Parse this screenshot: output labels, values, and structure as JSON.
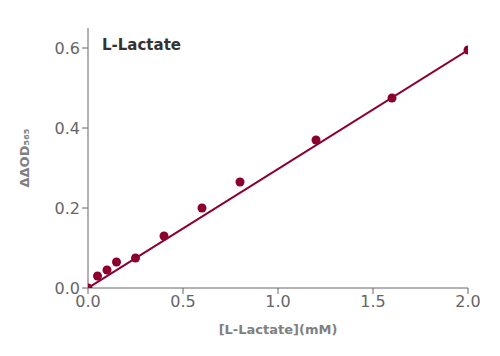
{
  "chart_data": {
    "type": "scatter",
    "xlabel": "[L-Lactate](mM)",
    "ylabel": "ΔΔOD₅₆₅",
    "annotation": "L-Lactate",
    "series": [
      {
        "type": "line",
        "color": "#8b0030",
        "x": [
          0.0,
          2.0
        ],
        "values": [
          0.0,
          0.595
        ]
      },
      {
        "type": "scatter",
        "color": "#8b0030",
        "x": [
          0.0,
          0.05,
          0.1,
          0.15,
          0.25,
          0.4,
          0.6,
          0.8,
          1.2,
          1.6,
          2.0
        ],
        "values": [
          0.0,
          0.03,
          0.045,
          0.065,
          0.075,
          0.13,
          0.2,
          0.265,
          0.37,
          0.475,
          0.595
        ]
      }
    ],
    "xlim": [
      0.0,
      2.0
    ],
    "ylim": [
      0.0,
      0.65
    ],
    "xticks": [
      {
        "value": 0.0,
        "label": "0.0"
      },
      0.5,
      {
        "value": 1.0,
        "label": "1.0"
      },
      1.5,
      {
        "value": 2.0,
        "label": "2.0"
      }
    ],
    "yticks": [
      {
        "value": 0.0,
        "label": "0.0"
      },
      0.2,
      0.4,
      0.6
    ],
    "grid": false
  }
}
